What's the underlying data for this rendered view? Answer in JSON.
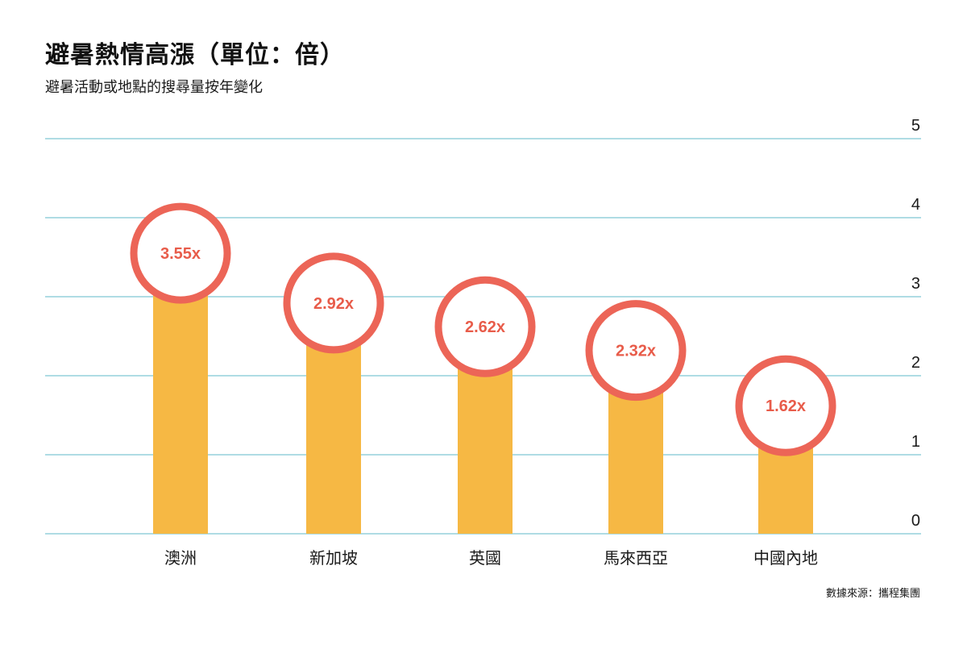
{
  "header": {
    "title": "避暑熱情高漲（單位：倍）",
    "subtitle": "避暑活動或地點的搜尋量按年變化"
  },
  "footer": {
    "source": "數據來源：攜程集團"
  },
  "colors": {
    "bar": "#F6B844",
    "circle_stroke": "#EC6557",
    "value_text": "#E85C4A",
    "grid": "#7FC8D3",
    "baseline": "#7FC8D3"
  },
  "chart_data": {
    "type": "bar",
    "title": "避暑熱情高漲（單位：倍）",
    "subtitle": "避暑活動或地點的搜尋量按年變化",
    "categories": [
      "澳洲",
      "新加坡",
      "英國",
      "馬來西亞",
      "中國內地"
    ],
    "values": [
      3.55,
      2.92,
      2.62,
      2.32,
      1.62
    ],
    "data_labels": [
      "3.55x",
      "2.92x",
      "2.62x",
      "2.32x",
      "1.62x"
    ],
    "ylim": [
      0,
      5
    ],
    "y_ticks": [
      0,
      1,
      2,
      3,
      4,
      5
    ],
    "y_tick_labels": [
      "0",
      "1",
      "2",
      "3",
      "4",
      "5"
    ],
    "y_axis_side": "right",
    "grid": true,
    "xlabel": "",
    "ylabel": ""
  }
}
